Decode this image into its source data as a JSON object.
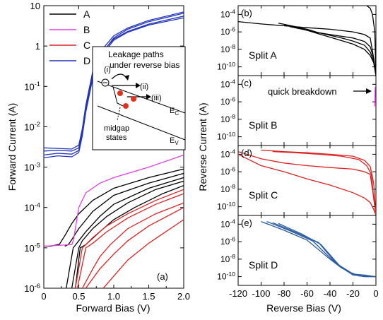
{
  "chart_data": [
    {
      "type": "line",
      "panel_label": "(a)",
      "xlabel": "Forward Bias (V)",
      "ylabel": "Forward Current (A)",
      "xlim": [
        0,
        2.0
      ],
      "ylim": [
        1e-06,
        10
      ],
      "yscale": "log",
      "xticks": [
        0,
        0.5,
        1.0,
        1.5,
        2.0
      ],
      "xticklabels": [
        "0",
        "0.5",
        "1.0",
        "1.5",
        "2.0"
      ],
      "yticks": [
        1e-06,
        1e-05,
        0.0001,
        0.001,
        0.01,
        0.1,
        1,
        10
      ],
      "yticklabels": [
        "10-6",
        "10-5",
        "10-4",
        "10-3",
        "10-2",
        "10-1",
        "1",
        "10"
      ],
      "legend_position": "top-left",
      "series": [
        {
          "name": "A",
          "color": "#000000",
          "curves": [
            {
              "x": [
                0,
                0.1,
                0.2,
                0.22,
                0.3,
                0.4,
                0.5,
                0.7,
                1.0,
                1.5,
                2.0
              ],
              "y": [
                1.1e-05,
                1.1e-05,
                1.2e-05,
                1.2e-05,
                2e-05,
                4e-05,
                7e-05,
                0.00015,
                0.0003,
                0.00055,
                0.0009
              ]
            },
            {
              "x": [
                0.3,
                0.35,
                0.4,
                0.5,
                0.7,
                1.0,
                1.5,
                2.0
              ],
              "y": [
                1.1e-05,
                1.2e-05,
                1.6e-05,
                3e-05,
                8e-05,
                0.0002,
                0.0004,
                0.0007
              ]
            },
            {
              "x": [
                0.32,
                0.42,
                0.5,
                0.6,
                0.8,
                1.0,
                1.5,
                2.0
              ],
              "y": [
                1e-06,
                1e-05,
                1.5e-05,
                2.5e-05,
                6e-05,
                0.00012,
                0.0003,
                0.00055
              ]
            },
            {
              "x": [
                0.4,
                0.5,
                0.55,
                0.7,
                0.9,
                1.2,
                1.6,
                2.0
              ],
              "y": [
                1e-06,
                1e-05,
                1.5e-05,
                3e-05,
                6e-05,
                0.00013,
                0.00028,
                0.00045
              ]
            },
            {
              "x": [
                0.45,
                0.52,
                0.6,
                0.8,
                1.0,
                1.3,
                1.7,
                2.0
              ],
              "y": [
                1e-06,
                1e-05,
                1.2e-05,
                2.5e-05,
                5e-05,
                0.0001,
                0.00022,
                0.00035
              ]
            }
          ]
        },
        {
          "name": "B",
          "color": "#e040e0",
          "curves": [
            {
              "x": [
                0,
                0.2,
                0.4,
                0.42,
                0.45,
                0.5,
                0.6,
                0.8,
                1.0,
                1.5,
                2.0
              ],
              "y": [
                1.1e-05,
                1.15e-05,
                1.2e-05,
                1.5e-05,
                3e-05,
                0.0001,
                0.00023,
                0.0004,
                0.00055,
                0.001,
                0.002
              ]
            }
          ]
        },
        {
          "name": "C",
          "color": "#dd2222",
          "curves": [
            {
              "x": [
                0.45,
                0.55,
                0.6,
                0.7,
                0.9,
                1.2,
                1.6,
                2.0
              ],
              "y": [
                1e-06,
                1e-05,
                1.2e-05,
                1.8e-05,
                3.5e-05,
                7e-05,
                0.00015,
                0.00028
              ]
            },
            {
              "x": [
                0.48,
                0.6,
                0.7,
                0.9,
                1.2,
                1.6,
                2.0
              ],
              "y": [
                1e-06,
                1e-05,
                1.3e-05,
                2.5e-05,
                5.5e-05,
                0.00012,
                0.00022
              ]
            },
            {
              "x": [
                0.55,
                0.7,
                0.8,
                0.95,
                1.2,
                1.6,
                2.0
              ],
              "y": [
                1e-06,
                3e-06,
                6e-06,
                1.2e-05,
                3e-05,
                7e-05,
                0.00013
              ]
            },
            {
              "x": [
                0.6,
                0.8,
                1.0,
                1.2,
                1.5,
                2.0
              ],
              "y": [
                1e-06,
                3e-06,
                7e-06,
                1.5e-05,
                3.5e-05,
                0.0001
              ]
            },
            {
              "x": [
                0.85,
                1.0,
                1.2,
                1.5,
                2.0
              ],
              "y": [
                1e-06,
                2e-06,
                5e-06,
                1.3e-05,
                5e-05
              ]
            }
          ]
        },
        {
          "name": "D",
          "color": "#2233bb",
          "curves": [
            {
              "x": [
                0,
                0.2,
                0.4,
                0.5,
                0.55,
                0.6,
                0.7,
                0.8,
                1.0,
                1.2,
                1.5,
                2.0
              ],
              "y": [
                0.0025,
                0.0026,
                0.0025,
                0.003,
                0.008,
                0.03,
                0.2,
                0.6,
                1.5,
                2.3,
                3.5,
                5.5
              ]
            },
            {
              "x": [
                0,
                0.2,
                0.4,
                0.5,
                0.55,
                0.6,
                0.7,
                0.8,
                1.0,
                1.2,
                1.5,
                2.0
              ],
              "y": [
                0.002,
                0.0022,
                0.0021,
                0.0026,
                0.007,
                0.026,
                0.18,
                0.55,
                1.6,
                2.6,
                4.0,
                6.5
              ]
            },
            {
              "x": [
                0,
                0.2,
                0.4,
                0.5,
                0.55,
                0.6,
                0.7,
                0.8,
                1.0,
                1.2,
                1.5,
                2.0
              ],
              "y": [
                0.003,
                0.0029,
                0.0028,
                0.0035,
                0.009,
                0.034,
                0.24,
                0.7,
                1.8,
                2.8,
                4.3,
                7.0
              ]
            },
            {
              "x": [
                0,
                0.2,
                0.4,
                0.5,
                0.55,
                0.6,
                0.7,
                0.8,
                1.0,
                1.2,
                1.5,
                2.0
              ],
              "y": [
                0.0017,
                0.0019,
                0.0018,
                0.0023,
                0.006,
                0.023,
                0.16,
                0.5,
                1.4,
                2.2,
                3.3,
                5.0
              ]
            }
          ]
        }
      ],
      "inset": {
        "title_lines": [
          "Leakage paths",
          "under reverse bias"
        ],
        "labels": [
          "(i)",
          "(ii)",
          "(iii)",
          "EC",
          "EV",
          "midgap",
          "states"
        ]
      }
    },
    {
      "type": "line",
      "xlabel": "Reverse Bias (V)",
      "ylabel": "Reverse Current (A)",
      "xlim": [
        -120,
        0
      ],
      "yscale": "log",
      "xticks": [
        -120,
        -100,
        -80,
        -60,
        -40,
        -20,
        0
      ],
      "xticklabels": [
        "-120",
        "-100",
        "-80",
        "-60",
        "-40",
        "-20",
        "0"
      ],
      "yticks": [
        1e-10,
        1e-08,
        1e-06,
        0.0001
      ],
      "yticklabels": [
        "10-10",
        "10-8",
        "10-6",
        "10-4"
      ],
      "panels": [
        {
          "panel_label": "(b)",
          "name": "Split A",
          "color": "#000000",
          "ylim": [
            1e-11,
            0.001
          ],
          "curves": [
            {
              "x": [
                -120,
                -100,
                -80,
                -60,
                -40,
                -20,
                -10,
                -5,
                -2,
                0
              ],
              "y": [
                1.5e-05,
                8e-06,
                5e-06,
                3e-06,
                2e-06,
                1e-06,
                5e-07,
                2e-07,
                1e-09,
                1e-11
              ]
            },
            {
              "x": [
                -85,
                -70,
                -60,
                -50,
                -40,
                -20,
                -10,
                -5,
                -2,
                0
              ],
              "y": [
                1e-05,
                4e-06,
                1.5e-06,
                8e-07,
                5e-07,
                2e-07,
                8e-08,
                2e-08,
                1e-09,
                1e-11
              ]
            },
            {
              "x": [
                -80,
                -60,
                -50,
                -40,
                -30,
                -20,
                -10,
                -5,
                -2,
                0
              ],
              "y": [
                6e-06,
                2e-06,
                8e-07,
                4e-07,
                2e-07,
                9e-08,
                3e-08,
                5e-09,
                5e-10,
                1e-11
              ]
            },
            {
              "x": [
                -75,
                -60,
                -50,
                -40,
                -30,
                -20,
                -10,
                -5,
                -2,
                0
              ],
              "y": [
                4e-06,
                1.5e-06,
                6e-07,
                2.5e-07,
                1e-07,
                4e-08,
                1e-08,
                2e-09,
                3e-10,
                1e-11
              ]
            },
            {
              "x": [
                -8,
                -5,
                -3,
                -1,
                0
              ],
              "y": [
                0.001,
                0.0005,
                0.0001,
                1e-06,
                1e-11
              ]
            }
          ]
        },
        {
          "panel_label": "(c)",
          "name": "Split B",
          "color": "#e040e0",
          "annotation": "quick breakdown",
          "ylim": [
            1e-11,
            0.001
          ],
          "curves": [
            {
              "x": [
                -1,
                -0.8,
                -0.6
              ],
              "y": [
                3e-07,
                4e-06,
                5e-05
              ]
            }
          ]
        },
        {
          "panel_label": "(d)",
          "name": "Split C",
          "color": "#dd2222",
          "ylim": [
            1e-11,
            0.001
          ],
          "curves": [
            {
              "x": [
                -120,
                -100,
                -80,
                -60,
                -40,
                -20,
                -10,
                -5,
                -2,
                0
              ],
              "y": [
                0.0002,
                3e-05,
                1e-05,
                5e-06,
                3e-06,
                2e-06,
                1e-06,
                5e-07,
                1e-09,
                1e-11
              ]
            },
            {
              "x": [
                -120,
                -100,
                -80,
                -60,
                -40,
                -20,
                -10,
                -5,
                -2,
                0
              ],
              "y": [
                0.0001,
                5e-06,
                1e-06,
                1.5e-07,
                3e-08,
                4e-09,
                1e-09,
                3e-10,
                5e-11,
                1e-11
              ]
            },
            {
              "x": [
                -100,
                -80,
                -60,
                -40,
                -20,
                -10,
                -5,
                -2,
                0
              ],
              "y": [
                0.0003,
                0.0002,
                0.00015,
                0.0001,
                6e-05,
                2e-05,
                4e-06,
                5e-08,
                1e-11
              ]
            },
            {
              "x": [
                -90,
                -70,
                -50,
                -30,
                -15,
                -8,
                -4,
                -2,
                0
              ],
              "y": [
                0.0002,
                0.00015,
                0.0001,
                6e-05,
                2.5e-05,
                5e-06,
                5e-07,
                1e-09,
                1e-11
              ]
            }
          ]
        },
        {
          "panel_label": "(e)",
          "name": "Split D",
          "color": "#2a5aa0",
          "ylim": [
            1e-11,
            0.001
          ],
          "curves": [
            {
              "x": [
                -100,
                -80,
                -60,
                -40,
                -30,
                -20,
                -10,
                0
              ],
              "y": [
                0.0002,
                2e-05,
                1.5e-06,
                1e-08,
                1e-09,
                2e-10,
                1.5e-10,
                1e-10
              ]
            },
            {
              "x": [
                -95,
                -75,
                -55,
                -38,
                -28,
                -20,
                -10,
                0
              ],
              "y": [
                0.0002,
                1.8e-05,
                1.2e-06,
                8e-09,
                8e-10,
                1.5e-10,
                1.2e-10,
                1e-10
              ]
            },
            {
              "x": [
                -90,
                -70,
                -50,
                -35,
                -25,
                -18,
                -10,
                0
              ],
              "y": [
                0.00015,
                1.2e-05,
                8e-07,
                4e-09,
                4e-10,
                1.5e-10,
                1e-10,
                1e-10
              ]
            },
            {
              "x": [
                -85,
                -65,
                -48,
                -32,
                -22,
                -15,
                -8,
                0
              ],
              "y": [
                0.00012,
                8e-06,
                5e-07,
                2e-09,
                3e-10,
                1.2e-10,
                1e-10,
                1e-10
              ]
            }
          ]
        }
      ]
    }
  ]
}
